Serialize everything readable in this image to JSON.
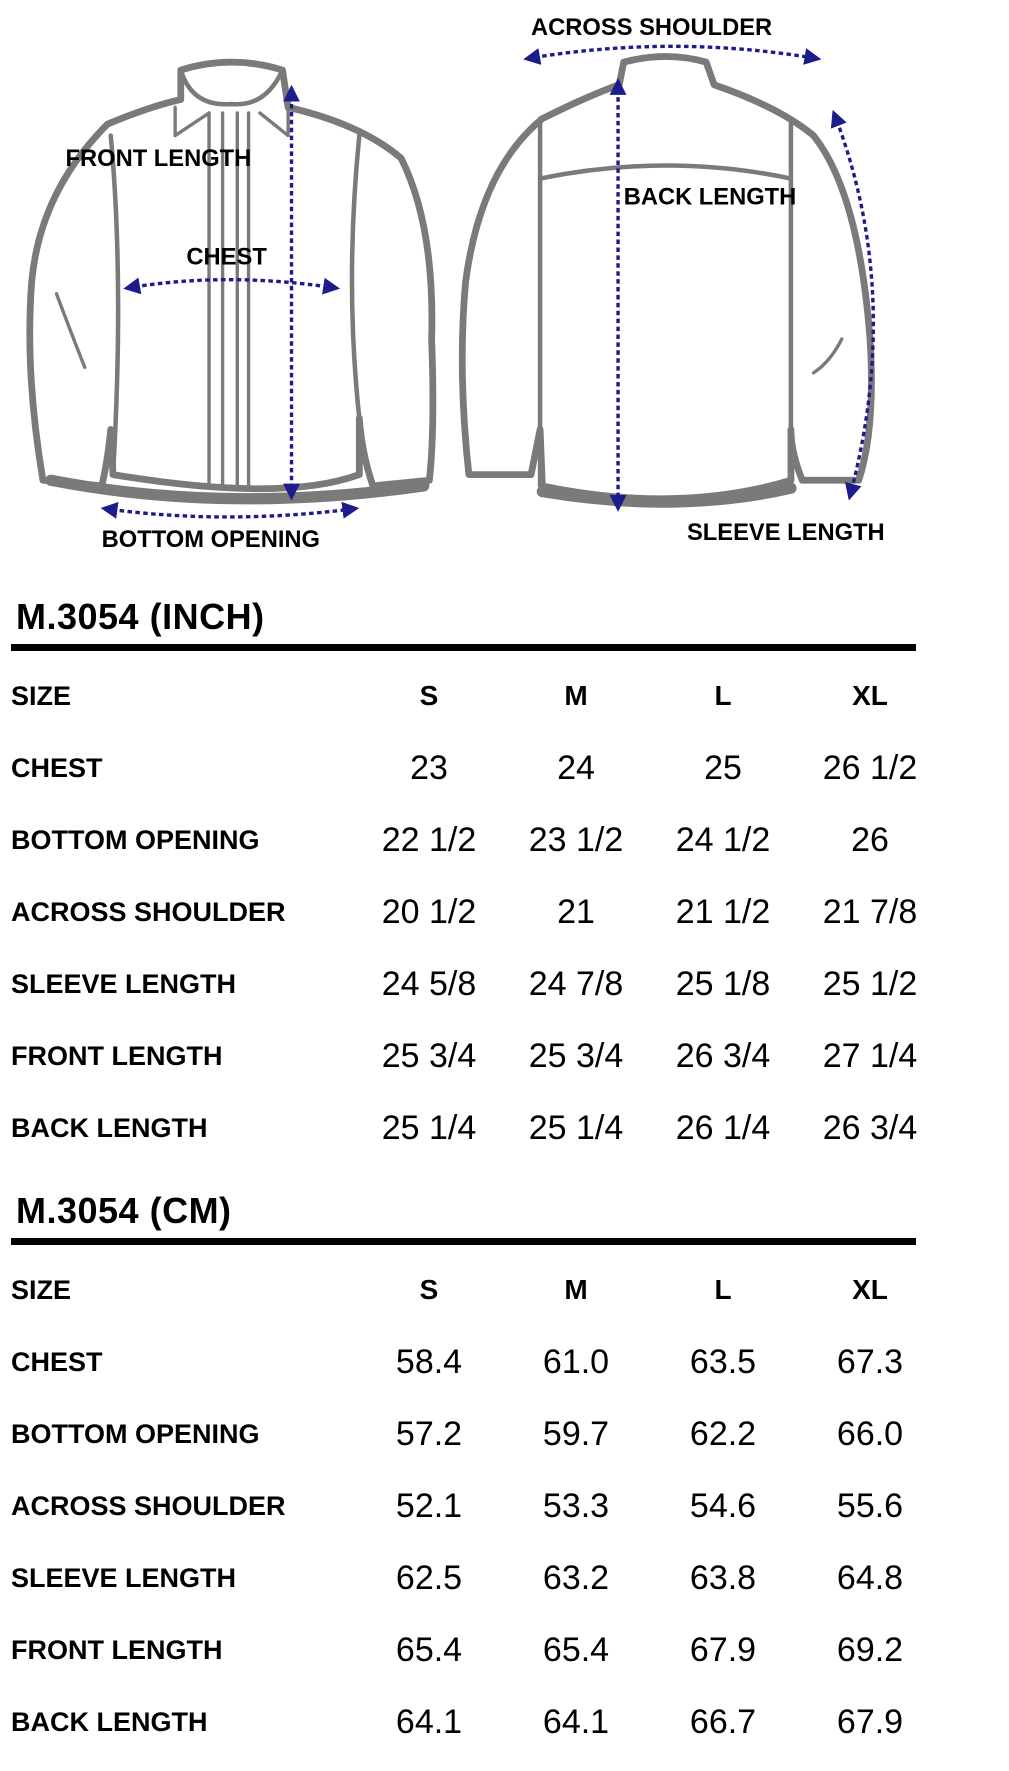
{
  "diagram": {
    "labels": {
      "front_length": "FRONT LENGTH",
      "chest": "CHEST",
      "bottom_opening": "BOTTOM OPENING",
      "across_shoulder": "ACROSS SHOULDER",
      "back_length": "BACK LENGTH",
      "sleeve_length": "SLEEVE LENGTH"
    },
    "colors": {
      "outline": "#7a7a7a",
      "arrow": "#1c1c8c"
    }
  },
  "tables": [
    {
      "title": "M.3054 (INCH)",
      "header": {
        "label": "SIZE",
        "sizes": [
          "S",
          "M",
          "L",
          "XL"
        ]
      },
      "rows": [
        {
          "label": "CHEST",
          "values": [
            "23",
            "24",
            "25",
            "26 1/2"
          ]
        },
        {
          "label": "BOTTOM OPENING",
          "values": [
            "22 1/2",
            "23 1/2",
            "24 1/2",
            "26"
          ]
        },
        {
          "label": "ACROSS SHOULDER",
          "values": [
            "20 1/2",
            "21",
            "21 1/2",
            "21 7/8"
          ]
        },
        {
          "label": "SLEEVE LENGTH",
          "values": [
            "24 5/8",
            "24 7/8",
            "25 1/8",
            "25 1/2"
          ]
        },
        {
          "label": "FRONT LENGTH",
          "values": [
            "25 3/4",
            "25 3/4",
            "26 3/4",
            "27 1/4"
          ]
        },
        {
          "label": "BACK LENGTH",
          "values": [
            "25 1/4",
            "25 1/4",
            "26 1/4",
            "26 3/4"
          ]
        }
      ]
    },
    {
      "title": "M.3054 (CM)",
      "header": {
        "label": "SIZE",
        "sizes": [
          "S",
          "M",
          "L",
          "XL"
        ]
      },
      "rows": [
        {
          "label": "CHEST",
          "values": [
            "58.4",
            "61.0",
            "63.5",
            "67.3"
          ]
        },
        {
          "label": "BOTTOM OPENING",
          "values": [
            "57.2",
            "59.7",
            "62.2",
            "66.0"
          ]
        },
        {
          "label": "ACROSS SHOULDER",
          "values": [
            "52.1",
            "53.3",
            "54.6",
            "55.6"
          ]
        },
        {
          "label": "SLEEVE LENGTH",
          "values": [
            "62.5",
            "63.2",
            "63.8",
            "64.8"
          ]
        },
        {
          "label": "FRONT LENGTH",
          "values": [
            "65.4",
            "65.4",
            "67.9",
            "69.2"
          ]
        },
        {
          "label": "BACK LENGTH",
          "values": [
            "64.1",
            "64.1",
            "66.7",
            "67.9"
          ]
        }
      ]
    }
  ]
}
